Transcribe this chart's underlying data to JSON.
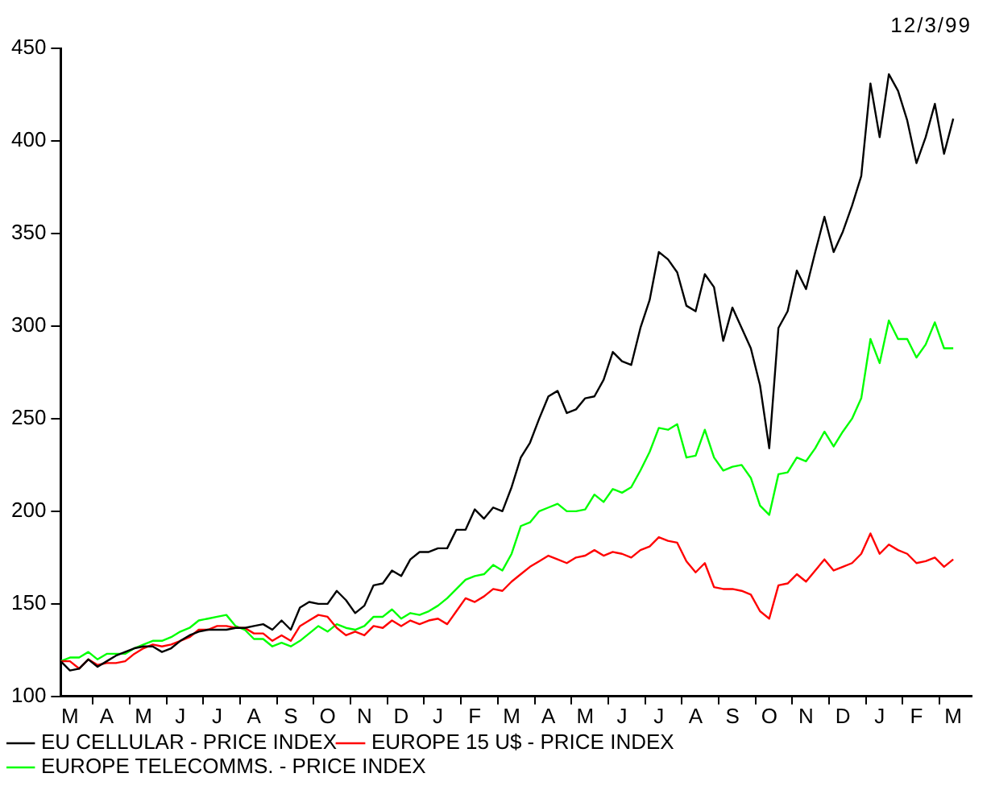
{
  "chart_data": {
    "type": "line",
    "annotations": [
      "12/3/99"
    ],
    "categories": [
      null,
      "M",
      null,
      null,
      null,
      "A",
      null,
      null,
      null,
      "M",
      null,
      null,
      null,
      "J",
      null,
      null,
      null,
      "J",
      null,
      null,
      null,
      "A",
      null,
      null,
      null,
      "S",
      null,
      null,
      null,
      "O",
      null,
      null,
      null,
      "N",
      null,
      null,
      null,
      "D",
      null,
      null,
      null,
      "J",
      null,
      null,
      null,
      "F",
      null,
      null,
      null,
      "M",
      null,
      null,
      null,
      "A",
      null,
      null,
      null,
      "M",
      null,
      null,
      null,
      "J",
      null,
      null,
      null,
      "J",
      null,
      null,
      null,
      "A",
      null,
      null,
      null,
      "S",
      null,
      null,
      null,
      "O",
      null,
      null,
      null,
      "N",
      null,
      null,
      null,
      "D",
      null,
      null,
      null,
      "J",
      null,
      null,
      null,
      "F",
      null,
      null,
      null,
      "M",
      null,
      null
    ],
    "ylim": [
      100,
      450
    ],
    "yticks": [
      100,
      150,
      200,
      250,
      300,
      350,
      400,
      450
    ],
    "grid": false,
    "legend": "bottom left",
    "marker": "none",
    "line_style": "solid",
    "series": [
      {
        "name": "EU CELLULAR - PRICE INDEX",
        "color": "#000000",
        "values": [
          119,
          114,
          115,
          120,
          116,
          119,
          122,
          124,
          126,
          127,
          127,
          124,
          126,
          130,
          133,
          135,
          136,
          136,
          136,
          137,
          137,
          138,
          139,
          136,
          141,
          136,
          148,
          151,
          150,
          150,
          157,
          152,
          145,
          149,
          160,
          161,
          168,
          165,
          174,
          178,
          178,
          180,
          180,
          190,
          190,
          201,
          196,
          202,
          200,
          213,
          229,
          237,
          250,
          262,
          265,
          253,
          255,
          261,
          262,
          271,
          286,
          281,
          279,
          299,
          314,
          340,
          336,
          329,
          311,
          308,
          328,
          321,
          292,
          310,
          299,
          288,
          268,
          234,
          299,
          308,
          330,
          320,
          340,
          359,
          340,
          351,
          365,
          381,
          431,
          402,
          436,
          427,
          411,
          388,
          402,
          420,
          393,
          412,
          null,
          null
        ]
      },
      {
        "name": "EUROPE 15 U$ - PRICE INDEX",
        "color": "#ff0000",
        "values": [
          119,
          119,
          115,
          120,
          117,
          118,
          118,
          119,
          123,
          126,
          128,
          127,
          128,
          130,
          132,
          136,
          136,
          138,
          138,
          137,
          137,
          134,
          134,
          130,
          133,
          130,
          138,
          141,
          144,
          143,
          137,
          133,
          135,
          133,
          138,
          137,
          141,
          138,
          141,
          139,
          141,
          142,
          139,
          146,
          153,
          151,
          154,
          158,
          157,
          162,
          166,
          170,
          173,
          176,
          174,
          172,
          175,
          176,
          179,
          176,
          178,
          177,
          175,
          179,
          181,
          186,
          184,
          183,
          173,
          167,
          172,
          159,
          158,
          158,
          157,
          155,
          146,
          142,
          160,
          161,
          166,
          162,
          168,
          174,
          168,
          170,
          172,
          177,
          188,
          177,
          182,
          179,
          177,
          172,
          173,
          175,
          170,
          174,
          null,
          null
        ]
      },
      {
        "name": "EUROPE TELECOMMS. - PRICE INDEX",
        "color": "#00ff00",
        "values": [
          119,
          121,
          121,
          124,
          120,
          123,
          123,
          123,
          126,
          128,
          130,
          130,
          132,
          135,
          137,
          141,
          142,
          143,
          144,
          138,
          136,
          131,
          131,
          127,
          129,
          127,
          130,
          134,
          138,
          135,
          139,
          137,
          136,
          138,
          143,
          143,
          147,
          142,
          145,
          144,
          146,
          149,
          153,
          158,
          163,
          165,
          166,
          171,
          168,
          177,
          192,
          194,
          200,
          202,
          204,
          200,
          200,
          201,
          209,
          205,
          212,
          210,
          213,
          222,
          232,
          245,
          244,
          247,
          229,
          230,
          244,
          229,
          222,
          224,
          225,
          218,
          203,
          198,
          220,
          221,
          229,
          227,
          234,
          243,
          235,
          243,
          250,
          261,
          293,
          280,
          303,
          293,
          293,
          283,
          290,
          302,
          288,
          288,
          null,
          null
        ]
      }
    ]
  }
}
